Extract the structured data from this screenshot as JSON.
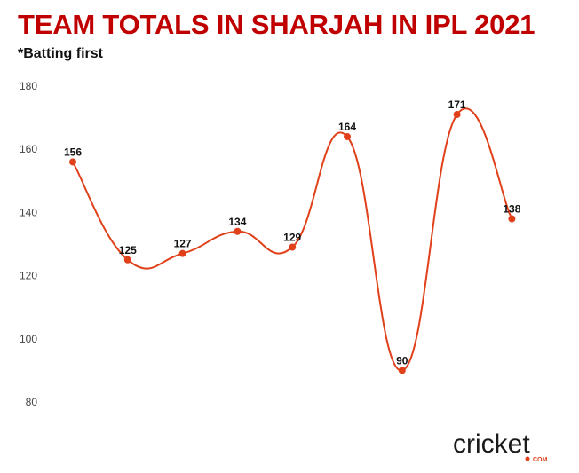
{
  "title": "TEAM TOTALS IN SHARJAH IN IPL 2021",
  "subtitle": "*Batting first",
  "colors": {
    "title": "#c00000",
    "line": "#e0401a",
    "marker": "#e0401a"
  },
  "logo": {
    "word": "cricket",
    "sub": ".COM"
  },
  "chart_data": {
    "type": "line",
    "title": "TEAM TOTALS IN SHARJAH IN IPL 2021",
    "subtitle": "*Batting first",
    "xlabel": "",
    "ylabel": "",
    "ylim": [
      80,
      180
    ],
    "yticks": [
      80,
      100,
      120,
      140,
      160,
      180
    ],
    "grid": false,
    "smooth": true,
    "series": [
      {
        "values": [
          156,
          125,
          127,
          134,
          129,
          164,
          90,
          171,
          138
        ]
      }
    ]
  }
}
